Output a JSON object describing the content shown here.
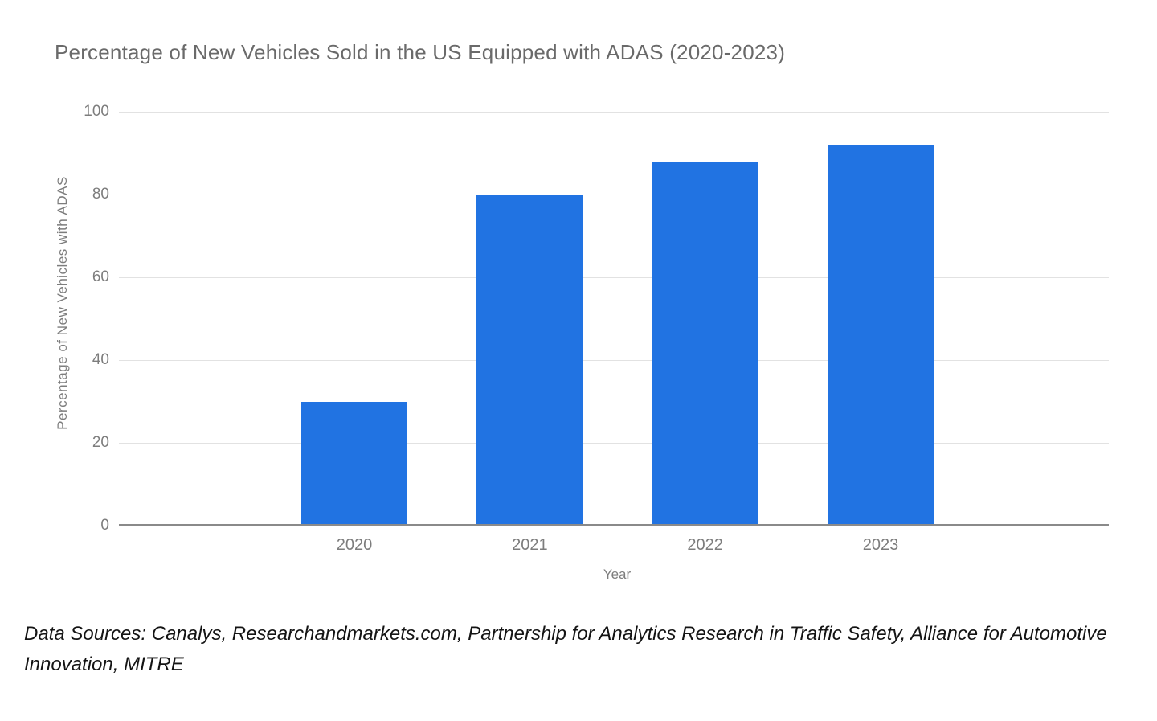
{
  "page": {
    "source_note": "Data Sources: Canalys, Researchandmarkets.com, Partnership for Analytics Research in Traffic Safety, Alliance for Automotive Innovation, MITRE"
  },
  "chart_data": {
    "type": "bar",
    "title": "Percentage of New Vehicles Sold in the US Equipped with ADAS (2020-2023)",
    "categories": [
      "2020",
      "2021",
      "2022",
      "2023"
    ],
    "values": [
      30,
      80,
      88,
      92
    ],
    "xlabel": "Year",
    "ylabel": "Percentage of New Vehicles with ADAS",
    "ylim": [
      0,
      100
    ],
    "yticks": [
      0,
      20,
      40,
      60,
      80,
      100
    ],
    "grid": true,
    "legend": "none",
    "colors": {
      "bar": "#2173e2",
      "gridline": "#e2e2e2",
      "axis_line": "#8a8a8a",
      "tick_label": "#7d7d7d",
      "title": "#6a6a6a",
      "source_text": "#141414"
    }
  }
}
